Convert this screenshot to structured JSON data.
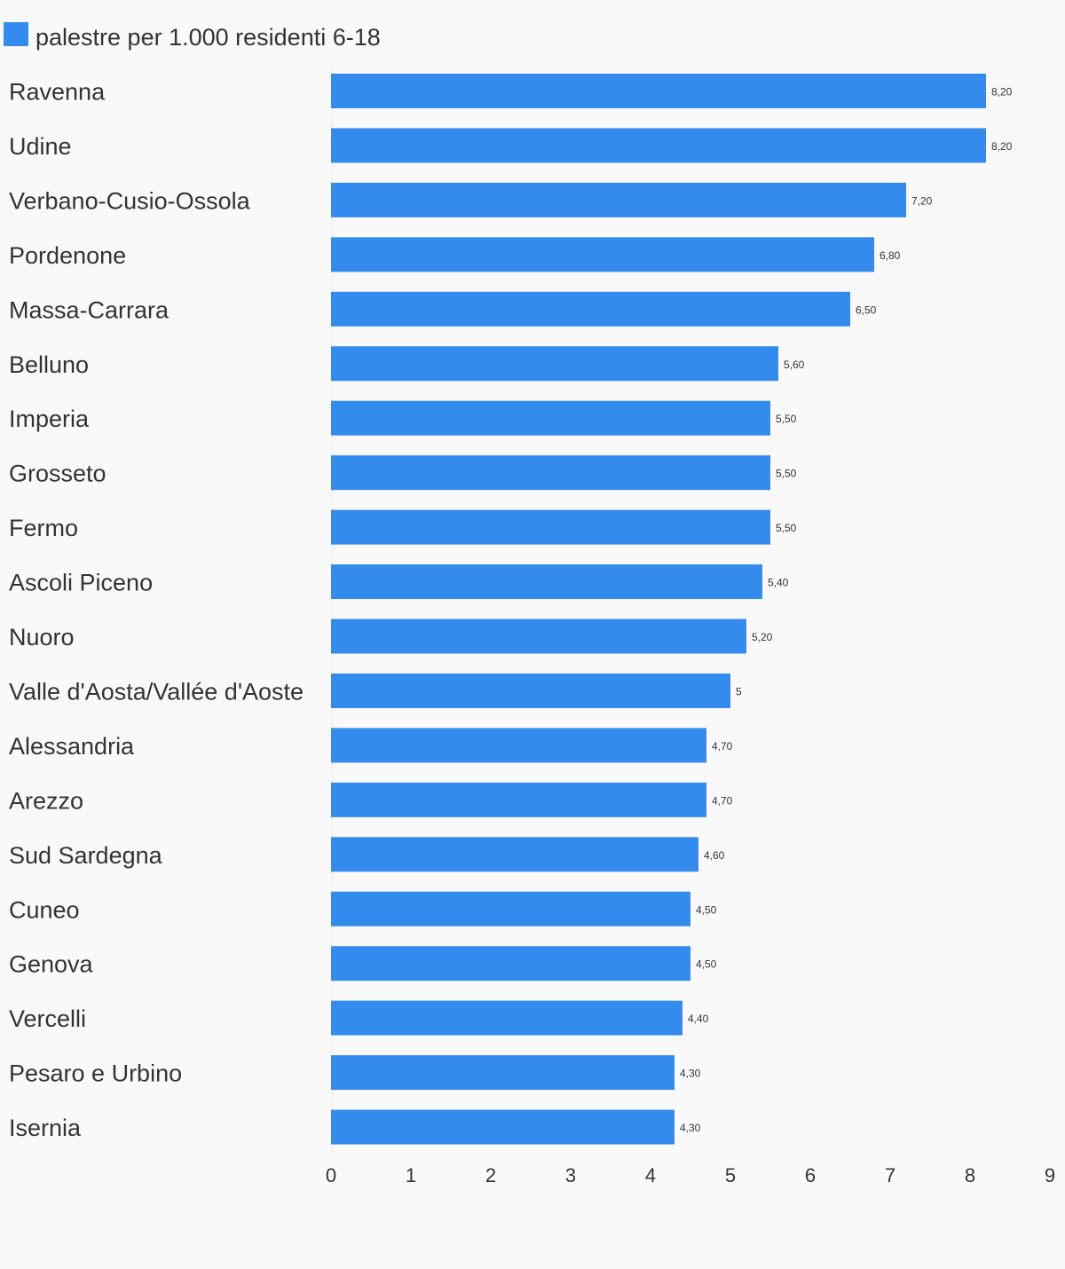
{
  "chart_data": {
    "type": "bar",
    "orientation": "horizontal",
    "legend": {
      "position": "top-left",
      "entries": [
        {
          "label": "palestre per 1.000 residenti 6-18",
          "color": "#338bed"
        }
      ]
    },
    "categories": [
      "Ravenna",
      "Udine",
      "Verbano-Cusio-Ossola",
      "Pordenone",
      "Massa-Carrara",
      "Belluno",
      "Imperia",
      "Grosseto",
      "Fermo",
      "Ascoli Piceno",
      "Nuoro",
      "Valle d'Aosta/Vallée d'Aoste",
      "Alessandria",
      "Arezzo",
      "Sud Sardegna",
      "Cuneo",
      "Genova",
      "Vercelli",
      "Pesaro e Urbino",
      "Isernia"
    ],
    "series": [
      {
        "name": "palestre per 1.000 residenti 6-18",
        "color": "#338bed",
        "values": [
          8.2,
          8.2,
          7.2,
          6.8,
          6.5,
          5.6,
          5.5,
          5.5,
          5.5,
          5.4,
          5.2,
          5.0,
          4.7,
          4.7,
          4.6,
          4.5,
          4.5,
          4.4,
          4.3,
          4.3
        ],
        "value_labels": [
          "8,20",
          "8,20",
          "7,20",
          "6,80",
          "6,50",
          "5,60",
          "5,50",
          "5,50",
          "5,50",
          "5,40",
          "5,20",
          "5",
          "4,70",
          "4,70",
          "4,60",
          "4,50",
          "4,50",
          "4,40",
          "4,30",
          "4,30"
        ]
      }
    ],
    "x_axis": {
      "range": [
        0,
        9
      ],
      "ticks": [
        "0",
        "1",
        "2",
        "3",
        "4",
        "5",
        "6",
        "7",
        "8",
        "9"
      ]
    },
    "grid": false,
    "title": "",
    "xlabel": "",
    "ylabel": ""
  }
}
